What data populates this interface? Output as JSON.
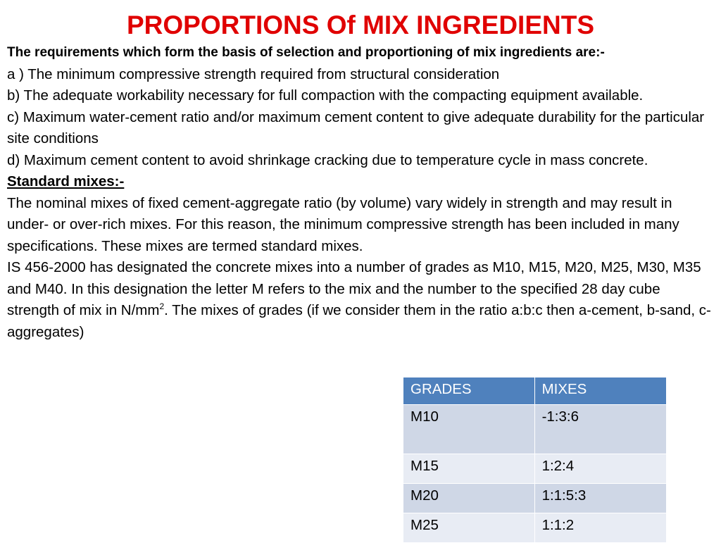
{
  "slide": {
    "title": "PROPORTIONS Of MIX INGREDIENTS",
    "intro": "The requirements which form the basis of selection and proportioning of mix ingredients are:-",
    "requirements": [
      "a ) The minimum compressive strength required from structural consideration",
      "b) The adequate workability necessary for full compaction with the compacting equipment available.",
      "c) Maximum water-cement ratio and/or maximum cement content to give adequate durability for the particular site conditions",
      "d) Maximum cement content to avoid shrinkage cracking due to temperature cycle in mass concrete."
    ],
    "section_heading": "Standard mixes:-",
    "paragraph_1": "The nominal mixes of fixed cement-aggregate ratio (by volume) vary widely in strength and may result in under- or over-rich mixes. For this reason, the minimum compressive strength has been included in many specifications. These mixes are termed standard mixes.",
    "paragraph_2_start": "IS 456-2000 has designated the concrete mixes into a number of grades as M10, M15, M20, M25, M30, M35 and M40. In this designation the letter M refers to the mix and the number to the specified 28 day cube strength of mix in N/mm",
    "paragraph_2_sup": "2",
    "paragraph_2_end": ". The mixes of grades (if we consider them in the ratio a:b:c then a-cement, b-sand, c-aggregates)"
  },
  "table": {
    "headers": [
      "GRADES",
      "MIXES"
    ],
    "rows": [
      {
        "grade": "M10",
        "mix": "-1:3:6"
      },
      {
        "grade": "M15",
        "mix": "1:2:4"
      },
      {
        "grade": "M20",
        "mix": "1:1:5:3"
      },
      {
        "grade": "M25",
        "mix": "1:1:2"
      }
    ]
  },
  "colors": {
    "title": "#e00000",
    "table_header": "#4f81bd",
    "table_row_odd": "#cfd7e6",
    "table_row_even": "#e8ecf4"
  }
}
